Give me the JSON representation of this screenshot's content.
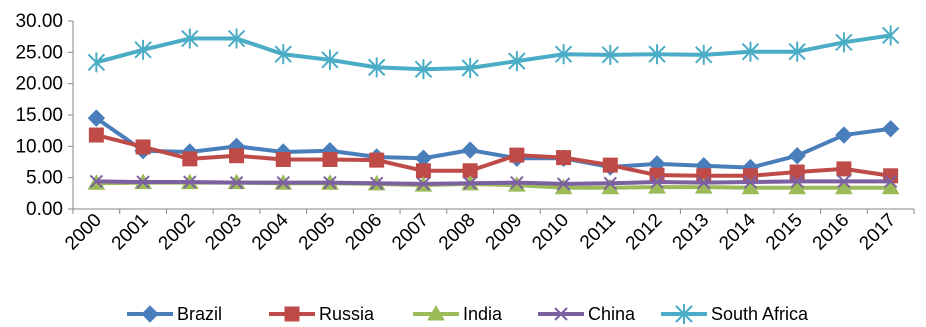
{
  "chart_data": {
    "type": "line",
    "title": "",
    "xlabel": "",
    "ylabel": "",
    "ylim": [
      0,
      30
    ],
    "yticks": [
      "0.00",
      "5.00",
      "10.00",
      "15.00",
      "20.00",
      "25.00",
      "30.00"
    ],
    "categories": [
      "2000",
      "2001",
      "2002",
      "2003",
      "2004",
      "2005",
      "2006",
      "2007",
      "2008",
      "2009",
      "2010",
      "2011",
      "2012",
      "2013",
      "2014",
      "2015",
      "2016",
      "2017"
    ],
    "grid": false,
    "legend_position": "bottom",
    "series": [
      {
        "name": "Brazil",
        "color": "#4a7ebb",
        "marker": "diamond",
        "values": [
          14.5,
          9.3,
          9.1,
          10.0,
          9.1,
          9.3,
          8.3,
          8.1,
          9.4,
          8.1,
          8.1,
          6.7,
          7.2,
          6.9,
          6.6,
          8.5,
          11.8,
          12.8
        ]
      },
      {
        "name": "Russia",
        "color": "#be4b48",
        "marker": "square",
        "values": [
          11.8,
          9.9,
          8.0,
          8.5,
          7.9,
          7.9,
          7.8,
          6.1,
          6.1,
          8.6,
          8.2,
          7.0,
          5.4,
          5.3,
          5.3,
          5.9,
          6.4,
          5.3
        ]
      },
      {
        "name": "India",
        "color": "#9bbb59",
        "marker": "triangle",
        "values": [
          4.1,
          4.2,
          4.2,
          4.2,
          4.1,
          4.1,
          4.0,
          3.8,
          4.0,
          3.8,
          3.4,
          3.4,
          3.5,
          3.5,
          3.4,
          3.4,
          3.4,
          3.4
        ]
      },
      {
        "name": "China",
        "color": "#7d60a0",
        "marker": "x",
        "values": [
          4.4,
          4.3,
          4.3,
          4.2,
          4.2,
          4.2,
          4.1,
          4.0,
          4.1,
          4.2,
          4.0,
          4.1,
          4.3,
          4.2,
          4.3,
          4.4,
          4.4,
          4.4
        ]
      },
      {
        "name": "South Africa",
        "color": "#4bacc6",
        "marker": "star",
        "values": [
          23.4,
          25.4,
          27.2,
          27.2,
          24.7,
          23.8,
          22.6,
          22.3,
          22.5,
          23.6,
          24.7,
          24.6,
          24.7,
          24.6,
          25.1,
          25.1,
          26.6,
          27.7
        ]
      }
    ]
  }
}
